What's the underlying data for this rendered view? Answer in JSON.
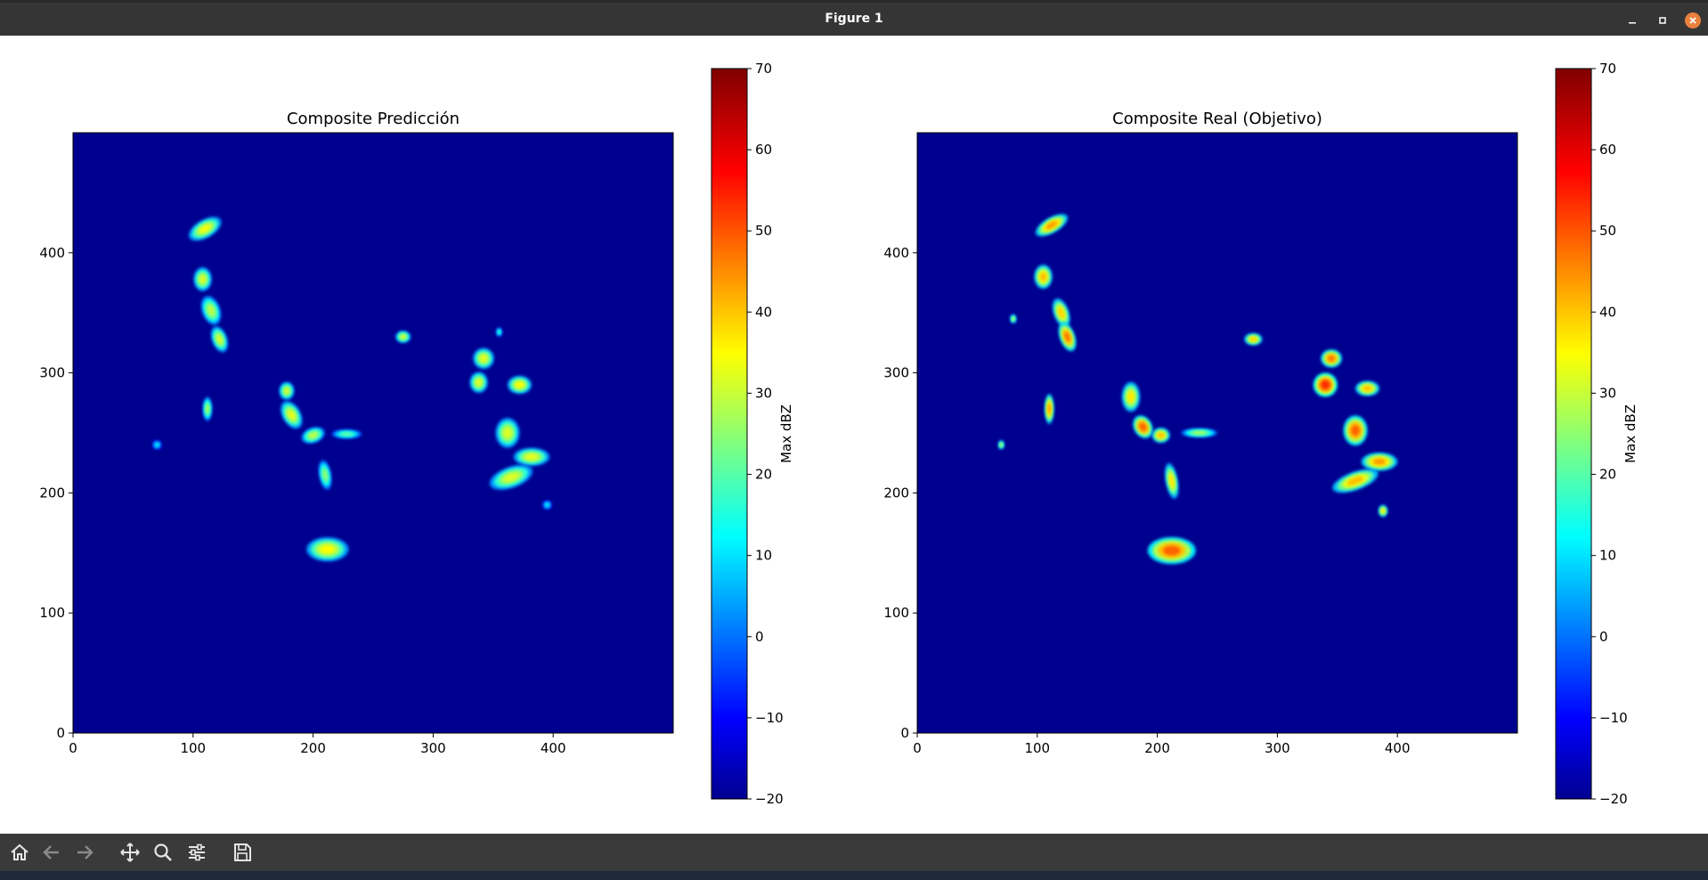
{
  "window": {
    "title": "Figure 1"
  },
  "toolbar": {
    "buttons": [
      {
        "name": "home-button",
        "icon": "home-icon",
        "enabled": true
      },
      {
        "name": "back-button",
        "icon": "arrow-left-icon",
        "enabled": false
      },
      {
        "name": "forward-button",
        "icon": "arrow-right-icon",
        "enabled": false
      },
      {
        "name": "pan-button",
        "icon": "move-icon",
        "enabled": true
      },
      {
        "name": "zoom-button",
        "icon": "magnifier-icon",
        "enabled": true
      },
      {
        "name": "configure-subplots-button",
        "icon": "sliders-icon",
        "enabled": true
      },
      {
        "name": "save-button",
        "icon": "save-icon",
        "enabled": true
      }
    ]
  },
  "colors": {
    "background_field": "#00008f",
    "window_bar": "#353535",
    "toolbar": "#3a3a3a",
    "close_button": "#e9803c"
  },
  "chart_data": [
    {
      "type": "heatmap",
      "title": "Composite Predicción",
      "xlabel": "",
      "ylabel": "",
      "xlim": [
        0,
        500
      ],
      "ylim": [
        0,
        500
      ],
      "x_ticks": [
        "0",
        "100",
        "200",
        "300",
        "400"
      ],
      "y_ticks": [
        "0",
        "100",
        "200",
        "300",
        "400"
      ],
      "colorbar": {
        "label": "Max dBZ",
        "range": [
          -20,
          70
        ],
        "ticks": [
          "−20",
          "−10",
          "0",
          "10",
          "20",
          "30",
          "40",
          "50",
          "60",
          "70"
        ],
        "colormap": "jet"
      },
      "cells": [
        {
          "x": 110,
          "y": 420,
          "rx": 12,
          "ry": 6,
          "dbz": 35,
          "rot": -30
        },
        {
          "x": 108,
          "y": 378,
          "rx": 6,
          "ry": 8,
          "dbz": 33,
          "rot": 0
        },
        {
          "x": 115,
          "y": 352,
          "rx": 6,
          "ry": 10,
          "dbz": 30,
          "rot": -20
        },
        {
          "x": 122,
          "y": 328,
          "rx": 5,
          "ry": 9,
          "dbz": 32,
          "rot": -20
        },
        {
          "x": 112,
          "y": 270,
          "rx": 3,
          "ry": 8,
          "dbz": 28,
          "rot": 0
        },
        {
          "x": 178,
          "y": 285,
          "rx": 5,
          "ry": 6,
          "dbz": 32,
          "rot": 0
        },
        {
          "x": 182,
          "y": 265,
          "rx": 6,
          "ry": 10,
          "dbz": 34,
          "rot": -30
        },
        {
          "x": 200,
          "y": 248,
          "rx": 8,
          "ry": 5,
          "dbz": 30,
          "rot": -20
        },
        {
          "x": 228,
          "y": 249,
          "rx": 10,
          "ry": 3,
          "dbz": 22,
          "rot": 0
        },
        {
          "x": 210,
          "y": 215,
          "rx": 4,
          "ry": 10,
          "dbz": 26,
          "rot": -10
        },
        {
          "x": 212,
          "y": 153,
          "rx": 14,
          "ry": 8,
          "dbz": 36,
          "rot": 0
        },
        {
          "x": 275,
          "y": 330,
          "rx": 5,
          "ry": 4,
          "dbz": 32,
          "rot": 0
        },
        {
          "x": 342,
          "y": 312,
          "rx": 7,
          "ry": 7,
          "dbz": 34,
          "rot": 0
        },
        {
          "x": 338,
          "y": 292,
          "rx": 6,
          "ry": 7,
          "dbz": 33,
          "rot": 0
        },
        {
          "x": 372,
          "y": 290,
          "rx": 8,
          "ry": 6,
          "dbz": 36,
          "rot": 0
        },
        {
          "x": 362,
          "y": 250,
          "rx": 8,
          "ry": 10,
          "dbz": 33,
          "rot": 0
        },
        {
          "x": 382,
          "y": 230,
          "rx": 12,
          "ry": 6,
          "dbz": 34,
          "rot": 0
        },
        {
          "x": 365,
          "y": 213,
          "rx": 15,
          "ry": 7,
          "dbz": 33,
          "rot": -20
        },
        {
          "x": 355,
          "y": 334,
          "rx": 2,
          "ry": 3,
          "dbz": 18,
          "rot": 0
        },
        {
          "x": 395,
          "y": 190,
          "rx": 3,
          "ry": 3,
          "dbz": 12,
          "rot": 0
        },
        {
          "x": 70,
          "y": 240,
          "rx": 3,
          "ry": 3,
          "dbz": 12,
          "rot": 0
        }
      ]
    },
    {
      "type": "heatmap",
      "title": "Composite Real (Objetivo)",
      "xlabel": "",
      "ylabel": "",
      "xlim": [
        0,
        500
      ],
      "ylim": [
        0,
        500
      ],
      "x_ticks": [
        "0",
        "100",
        "200",
        "300",
        "400"
      ],
      "y_ticks": [
        "0",
        "100",
        "200",
        "300",
        "400"
      ],
      "colorbar": {
        "label": "Max dBZ",
        "range": [
          -20,
          70
        ],
        "ticks": [
          "−20",
          "−10",
          "0",
          "10",
          "20",
          "30",
          "40",
          "50",
          "60",
          "70"
        ],
        "colormap": "jet"
      },
      "cells": [
        {
          "x": 112,
          "y": 423,
          "rx": 12,
          "ry": 5,
          "dbz": 45,
          "rot": -30
        },
        {
          "x": 105,
          "y": 380,
          "rx": 6,
          "ry": 8,
          "dbz": 42,
          "rot": 0
        },
        {
          "x": 120,
          "y": 350,
          "rx": 5,
          "ry": 10,
          "dbz": 40,
          "rot": -20
        },
        {
          "x": 125,
          "y": 330,
          "rx": 5,
          "ry": 10,
          "dbz": 48,
          "rot": -20
        },
        {
          "x": 110,
          "y": 270,
          "rx": 3,
          "ry": 10,
          "dbz": 45,
          "rot": 0
        },
        {
          "x": 178,
          "y": 280,
          "rx": 6,
          "ry": 10,
          "dbz": 38,
          "rot": 0
        },
        {
          "x": 188,
          "y": 255,
          "rx": 6,
          "ry": 8,
          "dbz": 50,
          "rot": -30
        },
        {
          "x": 203,
          "y": 248,
          "rx": 6,
          "ry": 5,
          "dbz": 42,
          "rot": 0
        },
        {
          "x": 235,
          "y": 250,
          "rx": 12,
          "ry": 3,
          "dbz": 28,
          "rot": 0
        },
        {
          "x": 212,
          "y": 210,
          "rx": 4,
          "ry": 12,
          "dbz": 38,
          "rot": -10
        },
        {
          "x": 212,
          "y": 152,
          "rx": 16,
          "ry": 9,
          "dbz": 50,
          "rot": 0
        },
        {
          "x": 280,
          "y": 328,
          "rx": 6,
          "ry": 4,
          "dbz": 40,
          "rot": 0
        },
        {
          "x": 345,
          "y": 312,
          "rx": 7,
          "ry": 6,
          "dbz": 48,
          "rot": 0
        },
        {
          "x": 340,
          "y": 290,
          "rx": 8,
          "ry": 8,
          "dbz": 55,
          "rot": 0
        },
        {
          "x": 375,
          "y": 287,
          "rx": 8,
          "ry": 5,
          "dbz": 42,
          "rot": 0
        },
        {
          "x": 365,
          "y": 252,
          "rx": 8,
          "ry": 10,
          "dbz": 50,
          "rot": 0
        },
        {
          "x": 385,
          "y": 226,
          "rx": 12,
          "ry": 6,
          "dbz": 45,
          "rot": 0
        },
        {
          "x": 365,
          "y": 210,
          "rx": 16,
          "ry": 6,
          "dbz": 42,
          "rot": -20
        },
        {
          "x": 388,
          "y": 185,
          "rx": 3,
          "ry": 4,
          "dbz": 38,
          "rot": 0
        },
        {
          "x": 70,
          "y": 240,
          "rx": 2,
          "ry": 3,
          "dbz": 30,
          "rot": 0
        },
        {
          "x": 80,
          "y": 345,
          "rx": 2,
          "ry": 3,
          "dbz": 30,
          "rot": 0
        }
      ]
    }
  ]
}
